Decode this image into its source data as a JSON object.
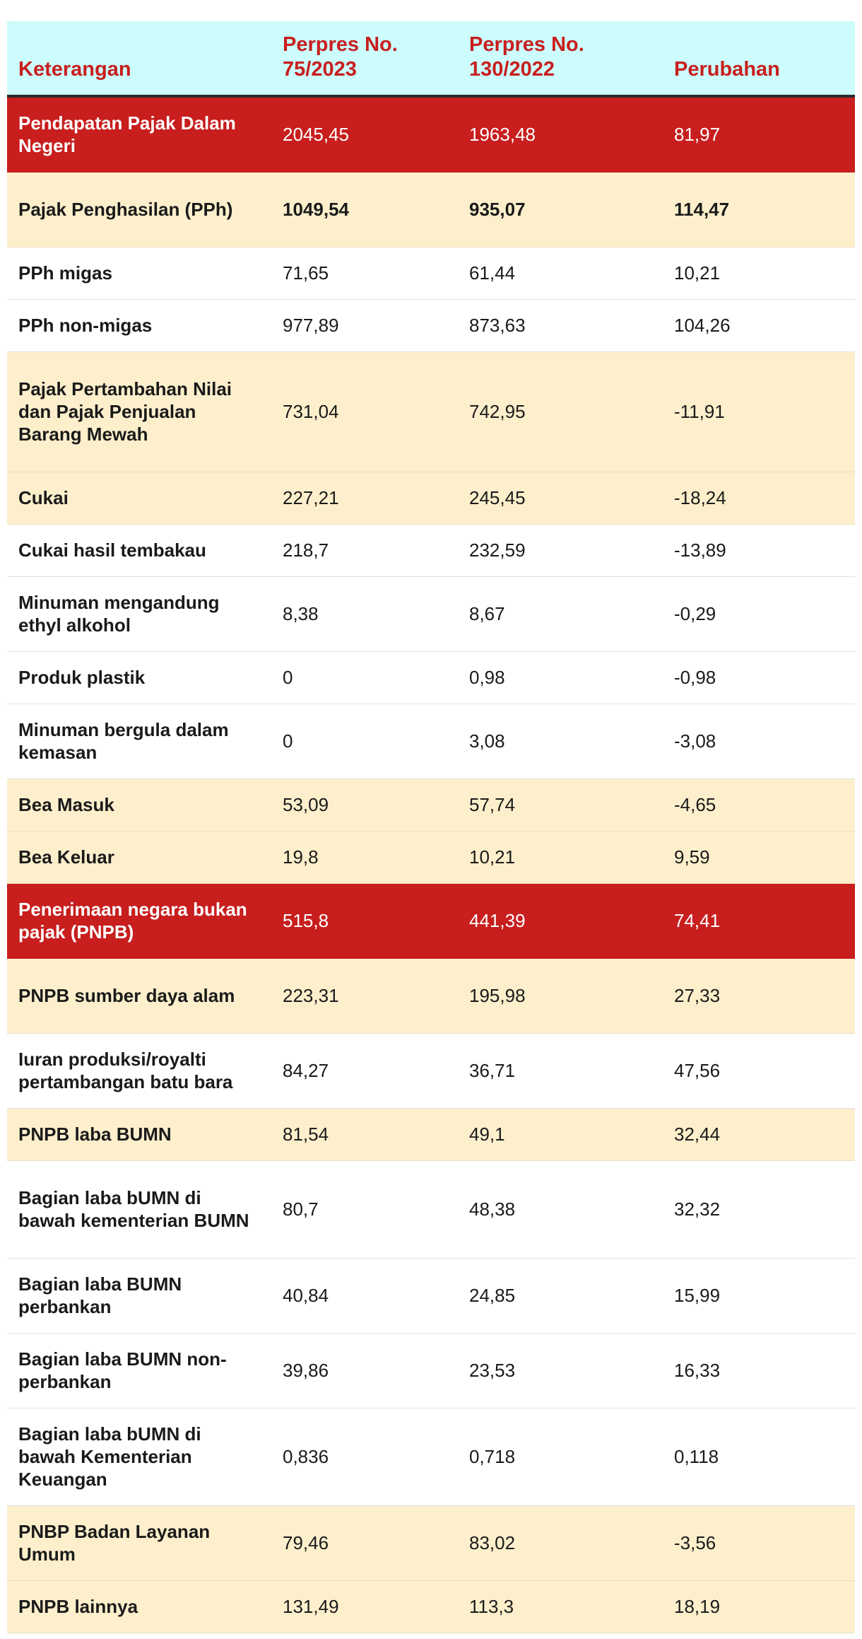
{
  "table": {
    "headers": [
      "Keterangan",
      "Perpres No. 75/2023",
      "Perpres No. 130/2022",
      "Perubahan"
    ],
    "rows": [
      {
        "label": "Pendapatan Pajak Dalam Negeri",
        "v1": "2045,45",
        "v2": "1963,48",
        "v3": "81,97",
        "style": "red"
      },
      {
        "label": "Pajak Penghasilan (PPh)",
        "v1": "1049,54",
        "v2": "935,07",
        "v3": "114,47",
        "style": "cream"
      },
      {
        "label": "PPh migas",
        "v1": "71,65",
        "v2": "61,44",
        "v3": "10,21",
        "style": "plain"
      },
      {
        "label": "PPh non-migas",
        "v1": "977,89",
        "v2": "873,63",
        "v3": "104,26",
        "style": "plain"
      },
      {
        "label": "Pajak Pertambahan Nilai dan Pajak Penjualan Barang Mewah",
        "v1": "731,04",
        "v2": "742,95",
        "v3": "-11,91",
        "style": "cream"
      },
      {
        "label": "Cukai",
        "v1": "227,21",
        "v2": "245,45",
        "v3": "-18,24",
        "style": "cream"
      },
      {
        "label": "Cukai hasil tembakau",
        "v1": "218,7",
        "v2": "232,59",
        "v3": "-13,89",
        "style": "plain"
      },
      {
        "label": "Minuman mengandung ethyl alkohol",
        "v1": "8,38",
        "v2": "8,67",
        "v3": "-0,29",
        "style": "plain"
      },
      {
        "label": "Produk plastik",
        "v1": "0",
        "v2": "0,98",
        "v3": "-0,98",
        "style": "plain"
      },
      {
        "label": "Minuman bergula dalam kemasan",
        "v1": "0",
        "v2": "3,08",
        "v3": "-3,08",
        "style": "plain"
      },
      {
        "label": "Bea Masuk",
        "v1": "53,09",
        "v2": "57,74",
        "v3": "-4,65",
        "style": "cream"
      },
      {
        "label": "Bea Keluar",
        "v1": "19,8",
        "v2": "10,21",
        "v3": "9,59",
        "style": "cream"
      },
      {
        "label": "Penerimaan negara bukan pajak (PNPB)",
        "v1": "515,8",
        "v2": "441,39",
        "v3": "74,41",
        "style": "red"
      },
      {
        "label": "PNPB sumber daya alam",
        "v1": "223,31",
        "v2": "195,98",
        "v3": "27,33",
        "style": "cream"
      },
      {
        "label": "Iuran produksi/royalti pertambangan batu bara",
        "v1": "84,27",
        "v2": "36,71",
        "v3": "47,56",
        "style": "plain"
      },
      {
        "label": "PNPB laba BUMN",
        "v1": "81,54",
        "v2": "49,1",
        "v3": "32,44",
        "style": "cream"
      },
      {
        "label": "Bagian laba bUMN di bawah kementerian BUMN",
        "v1": "80,7",
        "v2": "48,38",
        "v3": "32,32",
        "style": "plain"
      },
      {
        "label": "Bagian laba BUMN perbankan",
        "v1": "40,84",
        "v2": "24,85",
        "v3": "15,99",
        "style": "plain"
      },
      {
        "label": "Bagian laba BUMN non-perbankan",
        "v1": "39,86",
        "v2": "23,53",
        "v3": "16,33",
        "style": "plain"
      },
      {
        "label": "Bagian laba bUMN di bawah Kementerian Keuangan",
        "v1": "0,836",
        "v2": "0,718",
        "v3": "0,118",
        "style": "plain"
      },
      {
        "label": "PNBP Badan Layanan Umum",
        "v1": "79,46",
        "v2": "83,02",
        "v3": "-3,56",
        "style": "cream"
      },
      {
        "label": "PNPB lainnya",
        "v1": "131,49",
        "v2": "113,3",
        "v3": "18,19",
        "style": "cream"
      }
    ]
  },
  "colors": {
    "header_bg": "#ccfcfc",
    "header_text": "#c81e1e",
    "red_row_bg": "#c81e1e",
    "cream_row_bg": "#fdefcc",
    "plain_row_bg": "#ffffff"
  }
}
